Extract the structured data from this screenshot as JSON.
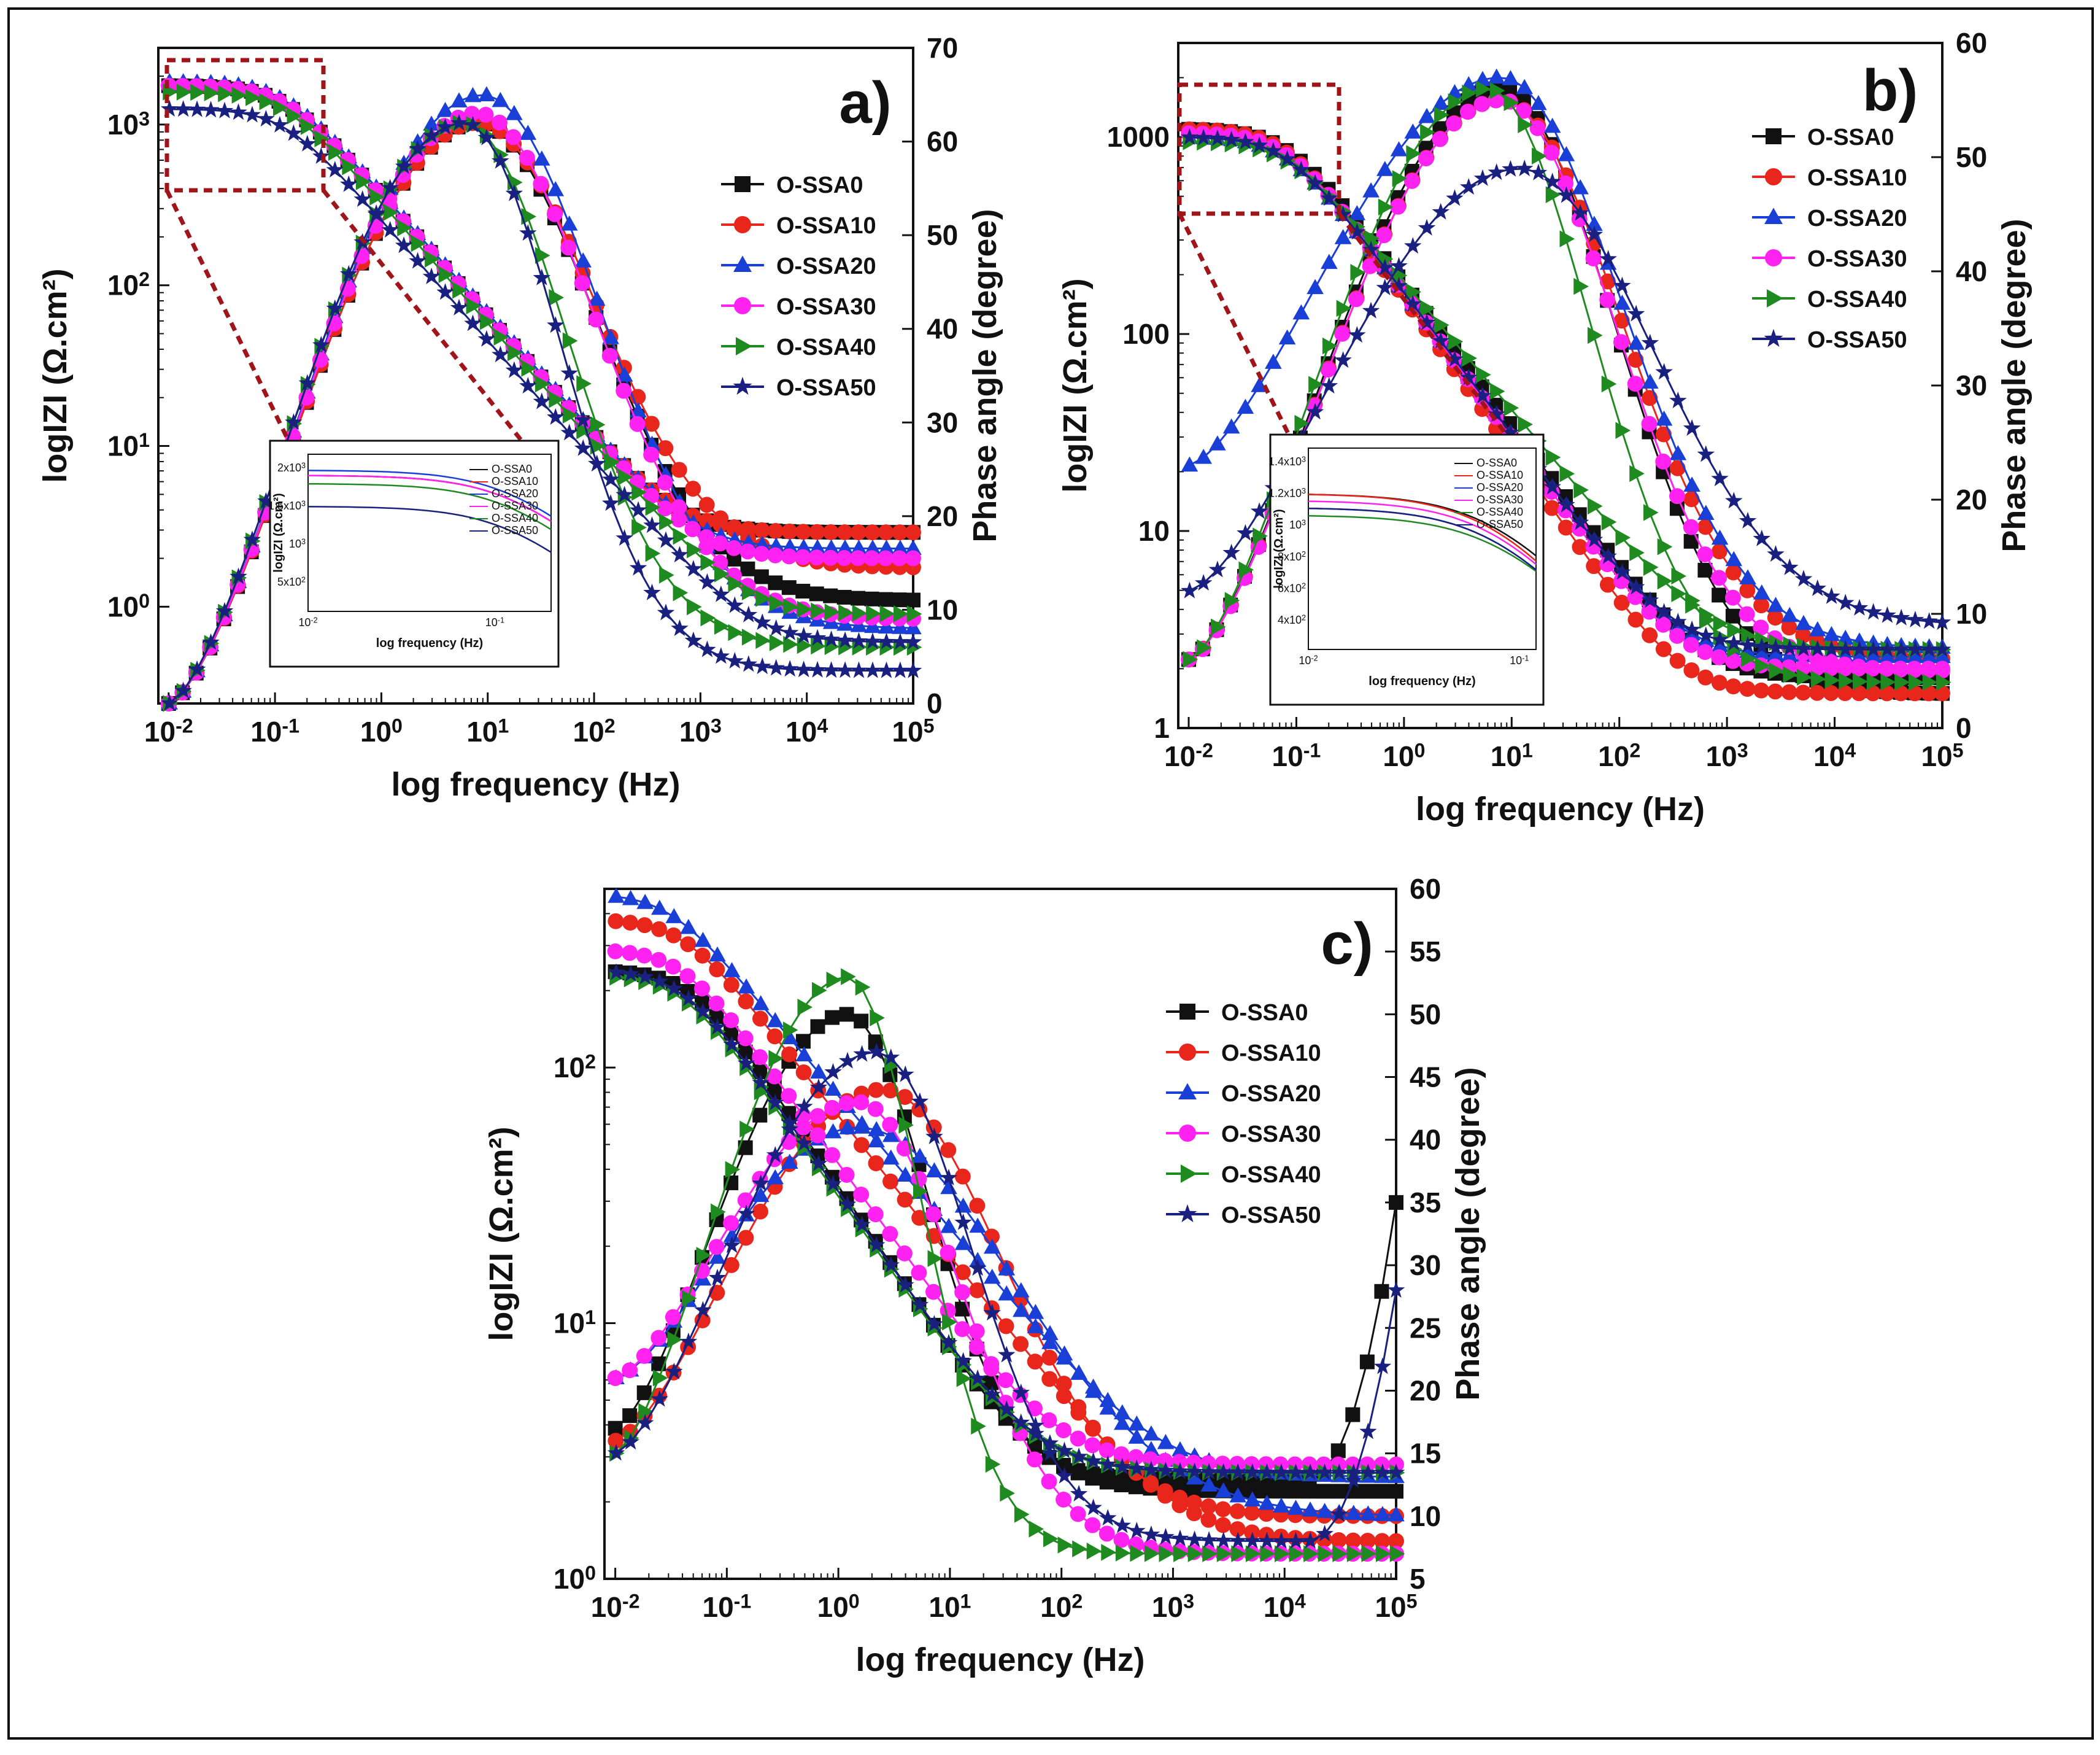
{
  "chart_data": [
    {
      "type": "line",
      "panel": "a)",
      "xlabel": "log frequency (Hz)",
      "ylabel": "logIZI (Ω.cm²)",
      "y2label": "Phase angle (degree)",
      "xscale": "log",
      "xlim": [
        0.008,
        100000
      ],
      "xticks": [
        0.01,
        0.1,
        1,
        10,
        100,
        1000,
        10000,
        100000
      ],
      "xtick_labels": [
        "10^-2",
        "10^-1",
        "10^0",
        "10^1",
        "10^2",
        "10^3",
        "10^4",
        "10^5"
      ],
      "yscale": "log",
      "ylim": [
        0.25,
        3000
      ],
      "yticks": [
        1,
        10,
        100,
        1000
      ],
      "ytick_labels": [
        "10^0",
        "10^1",
        "10^2",
        "10^3"
      ],
      "y2lim": [
        0,
        70
      ],
      "y2ticks": [
        0,
        10,
        20,
        30,
        40,
        50,
        60,
        70
      ],
      "legend_position": "right",
      "series": [
        {
          "name": "O-SSA0",
          "color": "#111111",
          "marker": "square",
          "modulus": {
            "low": 1750,
            "slope": 0.75,
            "fc": 0.12,
            "rs": 2.9
          },
          "phase": {
            "peak": 62,
            "fpeak": 8,
            "width": 1.95,
            "wlow": 1.6,
            "base": 11,
            "start": 0
          }
        },
        {
          "name": "O-SSA10",
          "color": "#e8261c",
          "marker": "circle",
          "modulus": {
            "low": 1750,
            "slope": 0.75,
            "fc": 0.12,
            "rs": 2.9
          },
          "phase": {
            "peak": 62,
            "fpeak": 8,
            "width": 1.95,
            "wlow": 1.6,
            "base": 14.5,
            "start": 0
          }
        },
        {
          "name": "O-SSA20",
          "color": "#1a3fd6",
          "marker": "triangle-up",
          "modulus": {
            "low": 1850,
            "slope": 0.75,
            "fc": 0.12,
            "rs": 2.3
          },
          "phase": {
            "peak": 65,
            "fpeak": 9,
            "width": 1.95,
            "wlow": 1.6,
            "base": 8,
            "start": 0
          }
        },
        {
          "name": "O-SSA30",
          "color": "#ff22f0",
          "marker": "circle",
          "modulus": {
            "low": 1750,
            "slope": 0.75,
            "fc": 0.12,
            "rs": 2.0
          },
          "phase": {
            "peak": 63,
            "fpeak": 8,
            "width": 1.95,
            "wlow": 1.6,
            "base": 9,
            "start": 0
          }
        },
        {
          "name": "O-SSA40",
          "color": "#1f8a1f",
          "marker": "triangle-right",
          "modulus": {
            "low": 1600,
            "slope": 0.75,
            "fc": 0.12,
            "rs": 0.9
          },
          "phase": {
            "peak": 62,
            "fpeak": 6,
            "width": 1.7,
            "wlow": 1.6,
            "base": 6,
            "start": 0
          }
        },
        {
          "name": "O-SSA50",
          "color": "#1a2080",
          "marker": "star",
          "modulus": {
            "low": 1250,
            "slope": 0.75,
            "fc": 0.12,
            "rs": 0.6
          },
          "phase": {
            "peak": 62,
            "fpeak": 6,
            "width": 1.6,
            "wlow": 1.6,
            "base": 3.5,
            "start": 0
          }
        }
      ],
      "inset": {
        "xlabel": "log frequency (Hz)",
        "ylabel": "logIZI (Ω.cm²)",
        "xlim": [
          0.01,
          0.2
        ],
        "xtick_labels": [
          "10^-2",
          "10^-1"
        ],
        "ylim": [
          400,
          2200
        ],
        "ytick_labels": [
          "2x10^3",
          "1.5x10^3",
          "10^3",
          "5x10^2"
        ],
        "legend": [
          "O-SSA0",
          "O-SSA10",
          "O-SSA20",
          "O-SSA30",
          "O-SSA40",
          "O-SSA50"
        ]
      }
    },
    {
      "type": "line",
      "panel": "b)",
      "xlabel": "log frequency (Hz)",
      "ylabel": "logIZI (Ω.cm²)",
      "y2label": "Phase angle (degree)",
      "xscale": "log",
      "xlim": [
        0.008,
        100000
      ],
      "xticks": [
        0.01,
        0.1,
        1,
        10,
        100,
        1000,
        10000,
        100000
      ],
      "xtick_labels": [
        "10^-2",
        "10^-1",
        "10^0",
        "10^1",
        "10^2",
        "10^3",
        "10^4",
        "10^5"
      ],
      "yscale": "log",
      "ylim": [
        1,
        3000
      ],
      "yticks": [
        1,
        10,
        100,
        1000
      ],
      "ytick_labels": [
        "1",
        "10",
        "100",
        "1000"
      ],
      "y2lim": [
        0,
        60
      ],
      "y2ticks": [
        0,
        10,
        20,
        30,
        40,
        50,
        60
      ],
      "legend_position": "right",
      "series": [
        {
          "name": "O-SSA0",
          "color": "#111111",
          "marker": "square",
          "modulus": {
            "low": 1100,
            "slope": 0.72,
            "fc": 0.08,
            "rs": 1.8
          },
          "phase": {
            "peak": 56,
            "fpeak": 8,
            "width": 1.9,
            "wlow": 1.3,
            "base": 3,
            "start": 6
          }
        },
        {
          "name": "O-SSA10",
          "color": "#e8261c",
          "marker": "circle",
          "modulus": {
            "low": 1100,
            "slope": 0.78,
            "fc": 0.08,
            "rs": 1.5
          },
          "phase": {
            "peak": 55,
            "fpeak": 8,
            "width": 2.0,
            "wlow": 1.3,
            "base": 6,
            "start": 6
          }
        },
        {
          "name": "O-SSA20",
          "color": "#1a3fd6",
          "marker": "triangle-up",
          "modulus": {
            "low": 1000,
            "slope": 0.72,
            "fc": 0.08,
            "rs": 2.3
          },
          "phase": {
            "peak": 57,
            "fpeak": 8,
            "width": 2.0,
            "wlow": 1.6,
            "base": 7,
            "start": 23
          }
        },
        {
          "name": "O-SSA30",
          "color": "#ff22f0",
          "marker": "circle",
          "modulus": {
            "low": 1050,
            "slope": 0.74,
            "fc": 0.08,
            "rs": 2.0
          },
          "phase": {
            "peak": 55,
            "fpeak": 8,
            "width": 1.9,
            "wlow": 1.3,
            "base": 5,
            "start": 6
          }
        },
        {
          "name": "O-SSA40",
          "color": "#1f8a1f",
          "marker": "triangle-right",
          "modulus": {
            "low": 950,
            "slope": 0.65,
            "fc": 0.08,
            "rs": 2.5
          },
          "phase": {
            "peak": 56,
            "fpeak": 6,
            "width": 1.7,
            "wlow": 1.3,
            "base": 4,
            "start": 6
          }
        },
        {
          "name": "O-SSA50",
          "color": "#1a2080",
          "marker": "star",
          "modulus": {
            "low": 1000,
            "slope": 0.72,
            "fc": 0.08,
            "rs": 2.5
          },
          "phase": {
            "peak": 49,
            "fpeak": 12,
            "width": 2.2,
            "wlow": 1.8,
            "base": 9,
            "start": 12
          }
        }
      ],
      "inset": {
        "xlabel": "log frequency (Hz)",
        "ylabel": "logIZI (Ω.cm²)",
        "xlim": [
          0.01,
          0.12
        ],
        "xtick_labels": [
          "10^-2",
          "10^-1"
        ],
        "ylim": [
          380,
          1500
        ],
        "ytick_labels": [
          "1.4x10^3",
          "1.2x10^3",
          "10^3",
          "8x10^2",
          "6x10^2",
          "4x10^2"
        ],
        "legend": [
          "O-SSA0",
          "O-SSA10",
          "O-SSA20",
          "O-SSA30",
          "O-SSA40",
          "O-SSA50"
        ]
      }
    },
    {
      "type": "line",
      "panel": "c)",
      "xlabel": "log frequency (Hz)",
      "ylabel": "logIZI (Ω.cm²)",
      "y2label": "Phase angle (degree)",
      "xscale": "log",
      "xlim": [
        0.008,
        100000
      ],
      "xticks": [
        0.01,
        0.1,
        1,
        10,
        100,
        1000,
        10000,
        100000
      ],
      "xtick_labels": [
        "10^-2",
        "10^-1",
        "10^0",
        "10^1",
        "10^2",
        "10^3",
        "10^4",
        "10^5"
      ],
      "yscale": "log",
      "ylim": [
        1,
        500
      ],
      "yticks": [
        1,
        10,
        100
      ],
      "ytick_labels": [
        "10^0",
        "10^1",
        "10^2"
      ],
      "y2lim": [
        5,
        60
      ],
      "y2ticks": [
        5,
        10,
        15,
        20,
        25,
        30,
        35,
        40,
        45,
        50,
        55,
        60
      ],
      "legend_position": "top-right",
      "series": [
        {
          "name": "O-SSA0",
          "color": "#111111",
          "marker": "square",
          "modulus": {
            "low": 240,
            "slope": 0.65,
            "fc": 0.05,
            "rs": 2.2
          },
          "phase": {
            "peak": 50,
            "fpeak": 1.2,
            "width": 1.3,
            "wlow": 1.2,
            "base": 13,
            "start": 17,
            "rise": 35
          }
        },
        {
          "name": "O-SSA10",
          "color": "#e8261c",
          "marker": "circle",
          "modulus": {
            "low": 380,
            "slope": 0.55,
            "fc": 0.04,
            "rs": 1.4
          },
          "phase": {
            "peak": 44,
            "fpeak": 2.5,
            "width": 1.9,
            "wlow": 1.4,
            "base": 10,
            "start": 16
          }
        },
        {
          "name": "O-SSA20",
          "color": "#1a3fd6",
          "marker": "triangle-up",
          "modulus": {
            "low": 480,
            "slope": 0.52,
            "fc": 0.03,
            "rs": 2.5
          },
          "phase": {
            "peak": 41,
            "fpeak": 1.5,
            "width": 2.5,
            "wlow": 1.4,
            "base": 10,
            "start": 21
          }
        },
        {
          "name": "O-SSA30",
          "color": "#ff22f0",
          "marker": "circle",
          "modulus": {
            "low": 290,
            "slope": 0.6,
            "fc": 0.04,
            "rs": 2.8
          },
          "phase": {
            "peak": 43,
            "fpeak": 1.5,
            "width": 1.6,
            "wlow": 1.3,
            "base": 7,
            "start": 21
          }
        },
        {
          "name": "O-SSA40",
          "color": "#1f8a1f",
          "marker": "triangle-right",
          "modulus": {
            "low": 230,
            "slope": 0.62,
            "fc": 0.04,
            "rs": 2.6
          },
          "phase": {
            "peak": 53,
            "fpeak": 1.2,
            "width": 1.2,
            "wlow": 1.1,
            "base": 7,
            "start": 15
          }
        },
        {
          "name": "O-SSA50",
          "color": "#1a2080",
          "marker": "star",
          "modulus": {
            "low": 240,
            "slope": 0.62,
            "fc": 0.04,
            "rs": 2.6
          },
          "phase": {
            "peak": 47,
            "fpeak": 2.2,
            "width": 1.5,
            "wlow": 1.3,
            "base": 8,
            "start": 15,
            "rise": 28
          }
        }
      ]
    }
  ]
}
